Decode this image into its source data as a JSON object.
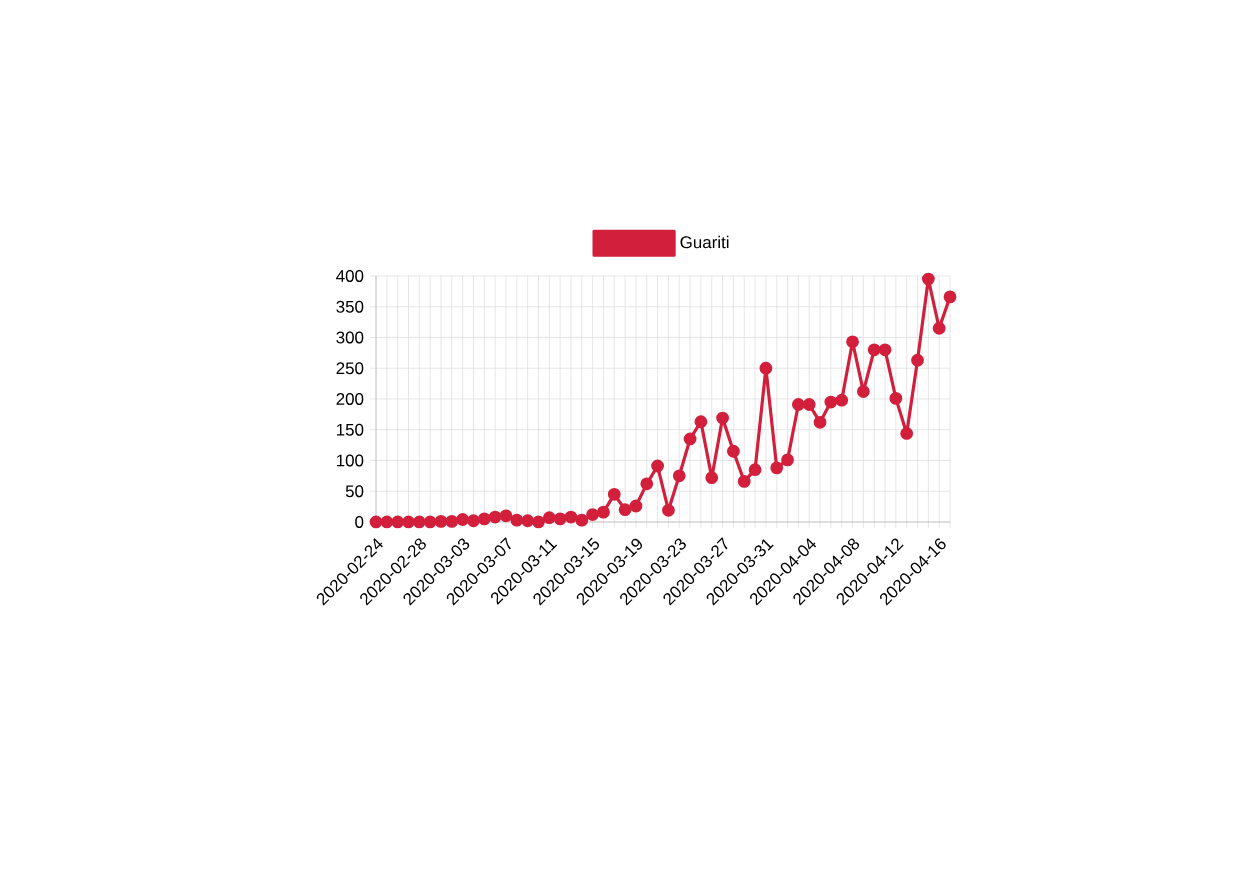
{
  "chart_data": {
    "type": "line",
    "categories": [
      "2020-02-24",
      null,
      null,
      null,
      "2020-02-28",
      null,
      null,
      null,
      "2020-03-03",
      null,
      null,
      null,
      "2020-03-07",
      null,
      null,
      null,
      "2020-03-11",
      null,
      null,
      null,
      "2020-03-15",
      null,
      null,
      null,
      "2020-03-19",
      null,
      null,
      null,
      "2020-03-23",
      null,
      null,
      null,
      "2020-03-27",
      null,
      null,
      null,
      "2020-03-31",
      null,
      null,
      null,
      "2020-04-04",
      null,
      null,
      null,
      "2020-04-08",
      null,
      null,
      null,
      "2020-04-12",
      null,
      null,
      null,
      "2020-04-16",
      null
    ],
    "series": [
      {
        "name": "Guariti",
        "color": "#d21f3c",
        "values": [
          0,
          0,
          0,
          0,
          0,
          0,
          1,
          1,
          4,
          2,
          5,
          8,
          10,
          3,
          2,
          0,
          7,
          5,
          8,
          3,
          12,
          16,
          45,
          20,
          26,
          62,
          91,
          19,
          75,
          135,
          163,
          72,
          169,
          115,
          66,
          85,
          250,
          88,
          101,
          191,
          191,
          162,
          195,
          198,
          293,
          212,
          280,
          280,
          201,
          144,
          263,
          395,
          315,
          366
        ]
      }
    ],
    "ylim": [
      0,
      400
    ],
    "yticks": [
      0,
      50,
      100,
      150,
      200,
      250,
      300,
      350,
      400
    ],
    "grid": true,
    "legend": "top",
    "marker": "circle",
    "line_style": "solid"
  }
}
